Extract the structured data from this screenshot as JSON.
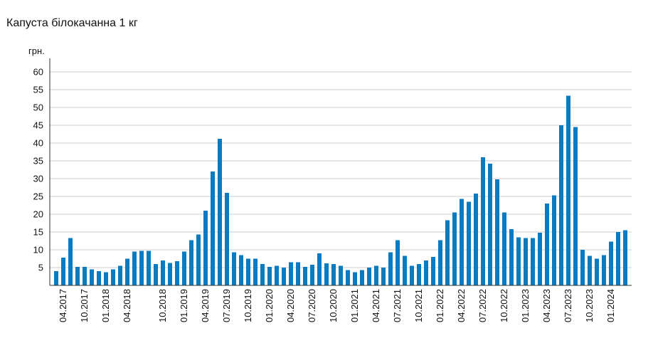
{
  "chart_data": {
    "type": "bar",
    "title": "Капуста білокачанна 1 кг",
    "ylabel": "грн.",
    "ylim": [
      0,
      60
    ],
    "yticks": [
      5,
      10,
      15,
      20,
      25,
      30,
      35,
      40,
      45,
      50,
      55,
      60
    ],
    "grid": true,
    "bar_color": "#0a7bc1",
    "x_tick_labels": [
      {
        "label": "04.2017",
        "index": 1
      },
      {
        "label": "10.2017",
        "index": 4
      },
      {
        "label": "01.2018",
        "index": 7
      },
      {
        "label": "04.2018",
        "index": 10
      },
      {
        "label": "10.2018",
        "index": 15
      },
      {
        "label": "01.2019",
        "index": 18
      },
      {
        "label": "04.2019",
        "index": 21
      },
      {
        "label": "07.2019",
        "index": 24
      },
      {
        "label": "10.2019",
        "index": 27
      },
      {
        "label": "01.2020",
        "index": 30
      },
      {
        "label": "04.2020",
        "index": 33
      },
      {
        "label": "07.2020",
        "index": 36
      },
      {
        "label": "10.2020",
        "index": 39
      },
      {
        "label": "01.2021",
        "index": 42
      },
      {
        "label": "04.2021",
        "index": 45
      },
      {
        "label": "07.2021",
        "index": 48
      },
      {
        "label": "10.2021",
        "index": 51
      },
      {
        "label": "01.2022",
        "index": 54
      },
      {
        "label": "04.2022",
        "index": 57
      },
      {
        "label": "07.2022",
        "index": 60
      },
      {
        "label": "10.2022",
        "index": 63
      },
      {
        "label": "01.2023",
        "index": 66
      },
      {
        "label": "04.2023",
        "index": 69
      },
      {
        "label": "07.2023",
        "index": 72
      },
      {
        "label": "10.2023",
        "index": 75
      },
      {
        "label": "01.2024",
        "index": 78
      }
    ],
    "values": [
      4.0,
      7.8,
      13.3,
      5.2,
      5.2,
      4.5,
      4.0,
      3.7,
      4.5,
      5.5,
      7.5,
      9.5,
      9.7,
      9.7,
      6.0,
      7.0,
      6.3,
      6.8,
      9.5,
      12.7,
      14.3,
      21.0,
      32.0,
      41.2,
      26.0,
      9.3,
      8.5,
      7.5,
      7.5,
      6.0,
      5.2,
      5.5,
      5.0,
      6.5,
      6.5,
      5.2,
      5.8,
      9.0,
      6.2,
      6.0,
      5.5,
      4.3,
      3.7,
      4.3,
      5.0,
      5.5,
      5.0,
      9.3,
      12.7,
      8.3,
      5.5,
      6.0,
      7.0,
      8.0,
      12.7,
      18.3,
      20.5,
      24.3,
      23.5,
      25.8,
      36.0,
      34.2,
      29.8,
      20.5,
      15.8,
      13.5,
      13.3,
      13.3,
      14.8,
      23.0,
      25.3,
      45.0,
      53.3,
      44.5,
      10.0,
      8.3,
      7.5,
      8.5,
      12.3,
      15.0,
      15.5
    ]
  }
}
